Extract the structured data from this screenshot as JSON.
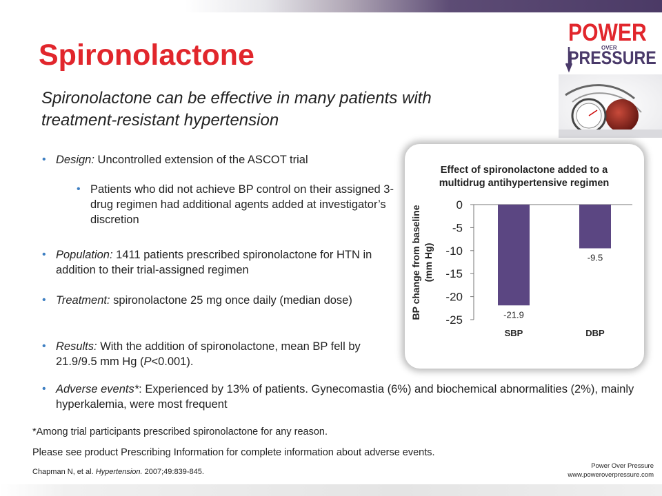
{
  "slide": {
    "title": "Spironolactone",
    "subtitle": "Spironolactone can be effective in many patients with treatment-resistant hypertension"
  },
  "logo": {
    "line1": "POWER",
    "line2": "OVER",
    "line3": "PRESSURE",
    "colors": {
      "power": "#e1262c",
      "pressure": "#4a3a6a"
    }
  },
  "bullets": {
    "design_label": "Design:",
    "design_text": " Uncontrolled extension of the ASCOT trial",
    "design_sub": "Patients who did not achieve BP control on their assigned 3-drug regimen had additional agents added at investigator’s discretion",
    "population_label": "Population:",
    "population_text": " 1411 patients prescribed spironolactone for HTN in addition to their trial-assigned regimen",
    "treatment_label": "Treatment:",
    "treatment_text": " spironolactone 25 mg once daily (median dose)",
    "results_label": "Results:",
    "results_text_1": " With the addition of spironolactone, mean BP fell by 21.9/9.5 mm Hg (",
    "results_p": "P",
    "results_text_2": "<0.001).",
    "adverse_label": "Adverse events*",
    "adverse_text": ": Experienced by 13% of patients. Gynecomastia (6%) and biochemical abnormalities (2%), mainly hyperkalemia, were most frequent"
  },
  "footnotes": {
    "note1": "*Among trial participants prescribed spironolactone for any reason.",
    "note2": "Please see product Prescribing Information for complete information about adverse events.",
    "citation_authors": "Chapman N, et al. ",
    "citation_journal": "Hypertension.",
    "citation_rest": " 2007;49:839-845."
  },
  "corner": {
    "line1": "Power Over Pressure",
    "line2": "www.poweroverpressure.com"
  },
  "chart_data": {
    "type": "bar",
    "title": "Effect of spironolactone added to a multidrug antihypertensive regimen",
    "title_lines": [
      "Effect of spironolactone added to a",
      "multidrug antihypertensive regimen"
    ],
    "ylabel_lines": [
      "BP change from baseline",
      "(mm Hg)"
    ],
    "categories": [
      "SBP",
      "DBP"
    ],
    "values": [
      -21.9,
      -9.5
    ],
    "value_labels": [
      "-21.9",
      "-9.5"
    ],
    "ylim": [
      -25,
      0
    ],
    "yticks": [
      "0",
      "-5",
      "-10",
      "-15",
      "-20",
      "-25"
    ],
    "bar_color": "#5b4682",
    "grid": false
  }
}
